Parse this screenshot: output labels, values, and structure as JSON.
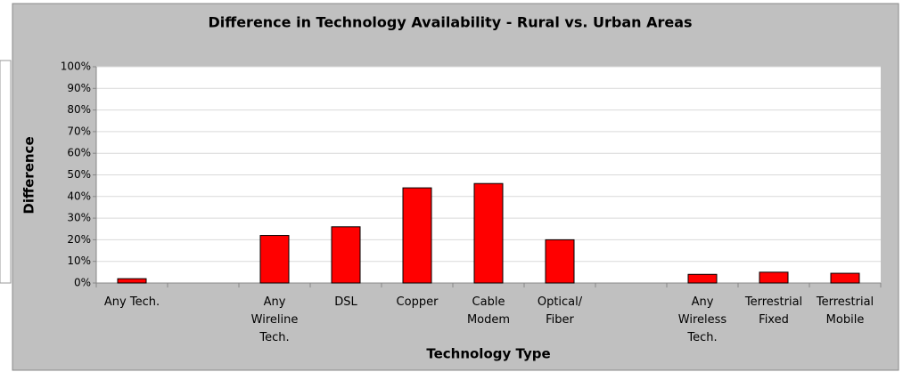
{
  "chart_data": {
    "type": "bar",
    "title": "Difference in Technology Availability - Rural vs. Urban Areas",
    "x_label": "Technology Type",
    "y_label": "Difference",
    "categories": [
      "Any Tech.",
      null,
      "Any Wireline Tech.",
      "DSL",
      "Copper",
      "Cable Modem",
      "Optical/ Fiber",
      null,
      "Any Wireless Tech.",
      "Terrestrial Fixed",
      "Terrestrial Mobile"
    ],
    "values": [
      2,
      null,
      22,
      26,
      44,
      46,
      20,
      null,
      4,
      5,
      4.5
    ],
    "color": "#ff0000",
    "ylim": [
      0,
      100
    ],
    "yticks": [
      {
        "value": 0,
        "label": "0%"
      },
      {
        "value": 10,
        "label": "10%"
      },
      {
        "value": 20,
        "label": "20%"
      },
      {
        "value": 30,
        "label": "30%"
      },
      {
        "value": 40,
        "label": "40%"
      },
      {
        "value": 50,
        "label": "50%"
      },
      {
        "value": 60,
        "label": "60%"
      },
      {
        "value": 70,
        "label": "70%"
      },
      {
        "value": 80,
        "label": "80%"
      },
      {
        "value": 90,
        "label": "90%"
      },
      {
        "value": 100,
        "label": "100%"
      }
    ],
    "grid": true
  }
}
